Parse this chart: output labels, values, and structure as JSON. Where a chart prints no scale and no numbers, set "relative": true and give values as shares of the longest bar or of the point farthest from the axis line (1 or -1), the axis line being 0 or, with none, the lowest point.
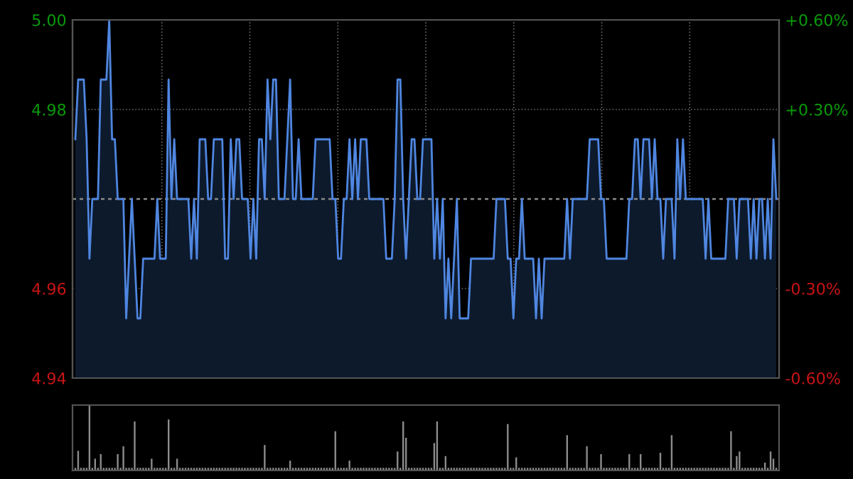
{
  "chart_data": [
    {
      "type": "area",
      "ylim": [
        4.94,
        5.0
      ],
      "yticks": [
        {
          "value": 5.0,
          "label": "5.00"
        },
        {
          "value": 4.985,
          "label": "4.98"
        },
        {
          "value": 4.955,
          "label": "4.96"
        },
        {
          "value": 4.94,
          "label": "4.94"
        }
      ],
      "y2lim": [
        -0.6,
        0.6
      ],
      "y2ticks": [
        {
          "value": 0.6,
          "label": "+0.60%"
        },
        {
          "value": 0.3,
          "label": "+0.30%"
        },
        {
          "value": -0.3,
          "label": "-0.30%"
        },
        {
          "value": -0.6,
          "label": "-0.60%"
        }
      ],
      "ref_lines": [
        {
          "axis": "y",
          "value": 4.97,
          "color": "#8a8a8a",
          "line_style": "dashed"
        }
      ],
      "grid": true,
      "categories": [
        null,
        null,
        null,
        null,
        null,
        null,
        null,
        null,
        null,
        null,
        null,
        null,
        null,
        null,
        null,
        null,
        null,
        null,
        null,
        null,
        null,
        null,
        null,
        null,
        null,
        null,
        null,
        null,
        null,
        null,
        null,
        null,
        null,
        null,
        null,
        null,
        null,
        null,
        null,
        null,
        null,
        null,
        null,
        null,
        null,
        null,
        null,
        null,
        null,
        null,
        null,
        null,
        null,
        null,
        null,
        null,
        null,
        null,
        null,
        null,
        null,
        null,
        null,
        null,
        null,
        null,
        null,
        null,
        null,
        null,
        null,
        null,
        null,
        null,
        null,
        null,
        null,
        null,
        null,
        null,
        null,
        null,
        null,
        null,
        null,
        null,
        null,
        null,
        null,
        null,
        null,
        null,
        null,
        null,
        null,
        null,
        null,
        null,
        null,
        null,
        null,
        null,
        null,
        null,
        null,
        null,
        null,
        null,
        null,
        null,
        null,
        null,
        null,
        null,
        null,
        null,
        null,
        null,
        null,
        null,
        null,
        null,
        null,
        null,
        null,
        null,
        null,
        null,
        null,
        null,
        null,
        null,
        null,
        null,
        null,
        null,
        null,
        null,
        null,
        null,
        null,
        null,
        null,
        null,
        null,
        null,
        null,
        null,
        null,
        null,
        null,
        null,
        null,
        null,
        null,
        null,
        null,
        null,
        null,
        null,
        null,
        null,
        null,
        null,
        null,
        null,
        null,
        null,
        null,
        null,
        null,
        null,
        null,
        null,
        null,
        null,
        null,
        null,
        null,
        null,
        null,
        null,
        null,
        null,
        null,
        null,
        null,
        null,
        null,
        null,
        null,
        null,
        null,
        null,
        null,
        null,
        null,
        null,
        null,
        null,
        null,
        null,
        null,
        null,
        null,
        null,
        null,
        null,
        null,
        null,
        null,
        null,
        null,
        null,
        null,
        null,
        null,
        null,
        null,
        null,
        null,
        null,
        null,
        null,
        null,
        null,
        null,
        null,
        null,
        null,
        null,
        null,
        null,
        null,
        null,
        null,
        null,
        null,
        null,
        null,
        null,
        null,
        null,
        null,
        null,
        null,
        null,
        null,
        null
      ],
      "series": [
        {
          "color": "#4f86e0",
          "values": [
            4.98,
            4.99,
            4.99,
            4.99,
            4.98,
            4.96,
            4.97,
            4.97,
            4.97,
            4.99,
            4.99,
            4.99,
            5.0,
            4.98,
            4.98,
            4.97,
            4.97,
            4.97,
            4.95,
            4.96,
            4.97,
            4.96,
            4.95,
            4.95,
            4.96,
            4.96,
            4.96,
            4.96,
            4.96,
            4.97,
            4.96,
            4.96,
            4.96,
            4.99,
            4.97,
            4.98,
            4.97,
            4.97,
            4.97,
            4.97,
            4.97,
            4.96,
            4.97,
            4.96,
            4.98,
            4.98,
            4.98,
            4.97,
            4.97,
            4.98,
            4.98,
            4.98,
            4.98,
            4.96,
            4.96,
            4.98,
            4.97,
            4.98,
            4.98,
            4.97,
            4.97,
            4.97,
            4.96,
            4.97,
            4.96,
            4.98,
            4.98,
            4.97,
            4.99,
            4.98,
            4.99,
            4.99,
            4.97,
            4.97,
            4.97,
            4.98,
            4.99,
            4.97,
            4.97,
            4.98,
            4.97,
            4.97,
            4.97,
            4.97,
            4.97,
            4.98,
            4.98,
            4.98,
            4.98,
            4.98,
            4.98,
            4.97,
            4.97,
            4.96,
            4.96,
            4.97,
            4.97,
            4.98,
            4.97,
            4.98,
            4.97,
            4.98,
            4.98,
            4.98,
            4.97,
            4.97,
            4.97,
            4.97,
            4.97,
            4.97,
            4.96,
            4.96,
            4.96,
            4.97,
            4.99,
            4.99,
            4.97,
            4.96,
            4.97,
            4.98,
            4.98,
            4.97,
            4.97,
            4.98,
            4.98,
            4.98,
            4.98,
            4.96,
            4.97,
            4.96,
            4.97,
            4.95,
            4.96,
            4.95,
            4.96,
            4.97,
            4.95,
            4.95,
            4.95,
            4.95,
            4.96,
            4.96,
            4.96,
            4.96,
            4.96,
            4.96,
            4.96,
            4.96,
            4.96,
            4.97,
            4.97,
            4.97,
            4.97,
            4.96,
            4.96,
            4.95,
            4.96,
            4.96,
            4.97,
            4.96,
            4.96,
            4.96,
            4.96,
            4.95,
            4.96,
            4.95,
            4.96,
            4.96,
            4.96,
            4.96,
            4.96,
            4.96,
            4.96,
            4.96,
            4.97,
            4.96,
            4.97,
            4.97,
            4.97,
            4.97,
            4.97,
            4.97,
            4.98,
            4.98,
            4.98,
            4.98,
            4.97,
            4.97,
            4.96,
            4.96,
            4.96,
            4.96,
            4.96,
            4.96,
            4.96,
            4.96,
            4.97,
            4.97,
            4.98,
            4.98,
            4.97,
            4.98,
            4.98,
            4.98,
            4.97,
            4.98,
            4.97,
            4.97,
            4.96,
            4.97,
            4.97,
            4.97,
            4.96,
            4.98,
            4.97,
            4.98,
            4.97,
            4.97,
            4.97,
            4.97,
            4.97,
            4.97,
            4.97,
            4.96,
            4.97,
            4.96,
            4.96,
            4.96,
            4.96,
            4.96,
            4.96,
            4.97,
            4.97,
            4.97,
            4.96,
            4.97,
            4.97,
            4.97,
            4.97,
            4.96,
            4.97,
            4.96,
            4.97,
            4.97,
            4.96,
            4.97,
            4.96,
            4.98,
            4.97
          ]
        }
      ]
    },
    {
      "type": "bar",
      "relative": true,
      "categories": [
        null,
        null,
        null,
        null,
        null,
        null,
        null,
        null,
        null,
        null,
        null,
        null,
        null,
        null,
        null,
        null,
        null,
        null,
        null,
        null,
        null,
        null,
        null,
        null,
        null,
        null,
        null,
        null,
        null,
        null,
        null,
        null,
        null,
        null,
        null,
        null,
        null,
        null,
        null,
        null,
        null,
        null,
        null,
        null,
        null,
        null,
        null,
        null,
        null,
        null,
        null,
        null,
        null,
        null,
        null,
        null,
        null,
        null,
        null,
        null,
        null,
        null,
        null,
        null,
        null,
        null,
        null,
        null,
        null,
        null,
        null,
        null,
        null,
        null,
        null,
        null,
        null,
        null,
        null,
        null,
        null,
        null,
        null,
        null,
        null,
        null,
        null,
        null,
        null,
        null,
        null,
        null,
        null,
        null,
        null,
        null,
        null,
        null,
        null,
        null,
        null,
        null,
        null,
        null,
        null,
        null,
        null,
        null,
        null,
        null,
        null,
        null,
        null,
        null,
        null,
        null,
        null,
        null,
        null,
        null,
        null,
        null,
        null,
        null,
        null,
        null,
        null,
        null,
        null,
        null,
        null,
        null,
        null,
        null,
        null,
        null,
        null,
        null,
        null,
        null,
        null,
        null,
        null,
        null,
        null,
        null,
        null,
        null,
        null,
        null,
        null,
        null,
        null,
        null,
        null,
        null,
        null,
        null,
        null,
        null,
        null,
        null,
        null,
        null,
        null,
        null,
        null,
        null,
        null,
        null,
        null,
        null,
        null,
        null,
        null,
        null,
        null,
        null,
        null,
        null,
        null,
        null,
        null,
        null,
        null,
        null,
        null,
        null,
        null,
        null,
        null,
        null,
        null,
        null,
        null,
        null,
        null,
        null,
        null,
        null,
        null,
        null,
        null,
        null,
        null,
        null,
        null,
        null,
        null,
        null,
        null,
        null,
        null,
        null,
        null,
        null,
        null,
        null,
        null,
        null,
        null,
        null,
        null,
        null,
        null,
        null,
        null,
        null,
        null,
        null,
        null,
        null,
        null,
        null,
        null,
        null,
        null,
        null,
        null,
        null,
        null,
        null,
        null,
        null,
        null,
        null,
        null,
        null,
        null
      ],
      "series": [
        {
          "color": "#8c8c8c",
          "values": [
            0.04,
            0.3,
            0.04,
            0.04,
            0.04,
            1.0,
            0.04,
            0.18,
            0.04,
            0.25,
            0.04,
            0.04,
            0.04,
            0.04,
            0.04,
            0.25,
            0.04,
            0.37,
            0.04,
            0.04,
            0.04,
            0.75,
            0.04,
            0.04,
            0.04,
            0.04,
            0.04,
            0.18,
            0.04,
            0.04,
            0.04,
            0.04,
            0.04,
            0.78,
            0.04,
            0.04,
            0.18,
            0.04,
            0.04,
            0.04,
            0.04,
            0.04,
            0.04,
            0.04,
            0.04,
            0.04,
            0.04,
            0.04,
            0.04,
            0.04,
            0.04,
            0.04,
            0.04,
            0.04,
            0.04,
            0.04,
            0.04,
            0.04,
            0.04,
            0.04,
            0.04,
            0.04,
            0.04,
            0.04,
            0.04,
            0.04,
            0.04,
            0.39,
            0.04,
            0.04,
            0.04,
            0.04,
            0.04,
            0.04,
            0.04,
            0.04,
            0.15,
            0.04,
            0.04,
            0.04,
            0.04,
            0.04,
            0.04,
            0.04,
            0.04,
            0.04,
            0.04,
            0.04,
            0.04,
            0.04,
            0.04,
            0.04,
            0.6,
            0.04,
            0.04,
            0.04,
            0.04,
            0.15,
            0.04,
            0.04,
            0.04,
            0.04,
            0.04,
            0.04,
            0.04,
            0.04,
            0.04,
            0.04,
            0.04,
            0.04,
            0.04,
            0.04,
            0.04,
            0.04,
            0.29,
            0.04,
            0.75,
            0.5,
            0.04,
            0.04,
            0.04,
            0.04,
            0.04,
            0.04,
            0.04,
            0.04,
            0.04,
            0.42,
            0.75,
            0.04,
            0.04,
            0.22,
            0.04,
            0.04,
            0.04,
            0.04,
            0.04,
            0.04,
            0.04,
            0.04,
            0.04,
            0.04,
            0.04,
            0.04,
            0.04,
            0.04,
            0.04,
            0.04,
            0.04,
            0.04,
            0.04,
            0.04,
            0.04,
            0.71,
            0.04,
            0.04,
            0.2,
            0.04,
            0.04,
            0.04,
            0.04,
            0.04,
            0.04,
            0.04,
            0.04,
            0.04,
            0.04,
            0.04,
            0.04,
            0.04,
            0.04,
            0.04,
            0.04,
            0.04,
            0.54,
            0.04,
            0.04,
            0.04,
            0.04,
            0.04,
            0.04,
            0.37,
            0.04,
            0.04,
            0.04,
            0.04,
            0.25,
            0.04,
            0.04,
            0.04,
            0.04,
            0.04,
            0.04,
            0.04,
            0.04,
            0.04,
            0.25,
            0.04,
            0.04,
            0.04,
            0.25,
            0.04,
            0.04,
            0.04,
            0.04,
            0.04,
            0.04,
            0.27,
            0.04,
            0.04,
            0.04,
            0.54,
            0.04,
            0.04,
            0.04,
            0.04,
            0.04,
            0.04,
            0.04,
            0.04,
            0.04,
            0.04,
            0.04,
            0.04,
            0.04,
            0.04,
            0.04,
            0.04,
            0.04,
            0.04,
            0.04,
            0.04,
            0.6,
            0.04,
            0.22,
            0.29,
            0.04,
            0.04,
            0.04,
            0.04,
            0.04,
            0.04,
            0.04,
            0.04,
            0.12,
            0.04,
            0.29,
            0.18,
            0.04
          ]
        }
      ]
    }
  ]
}
